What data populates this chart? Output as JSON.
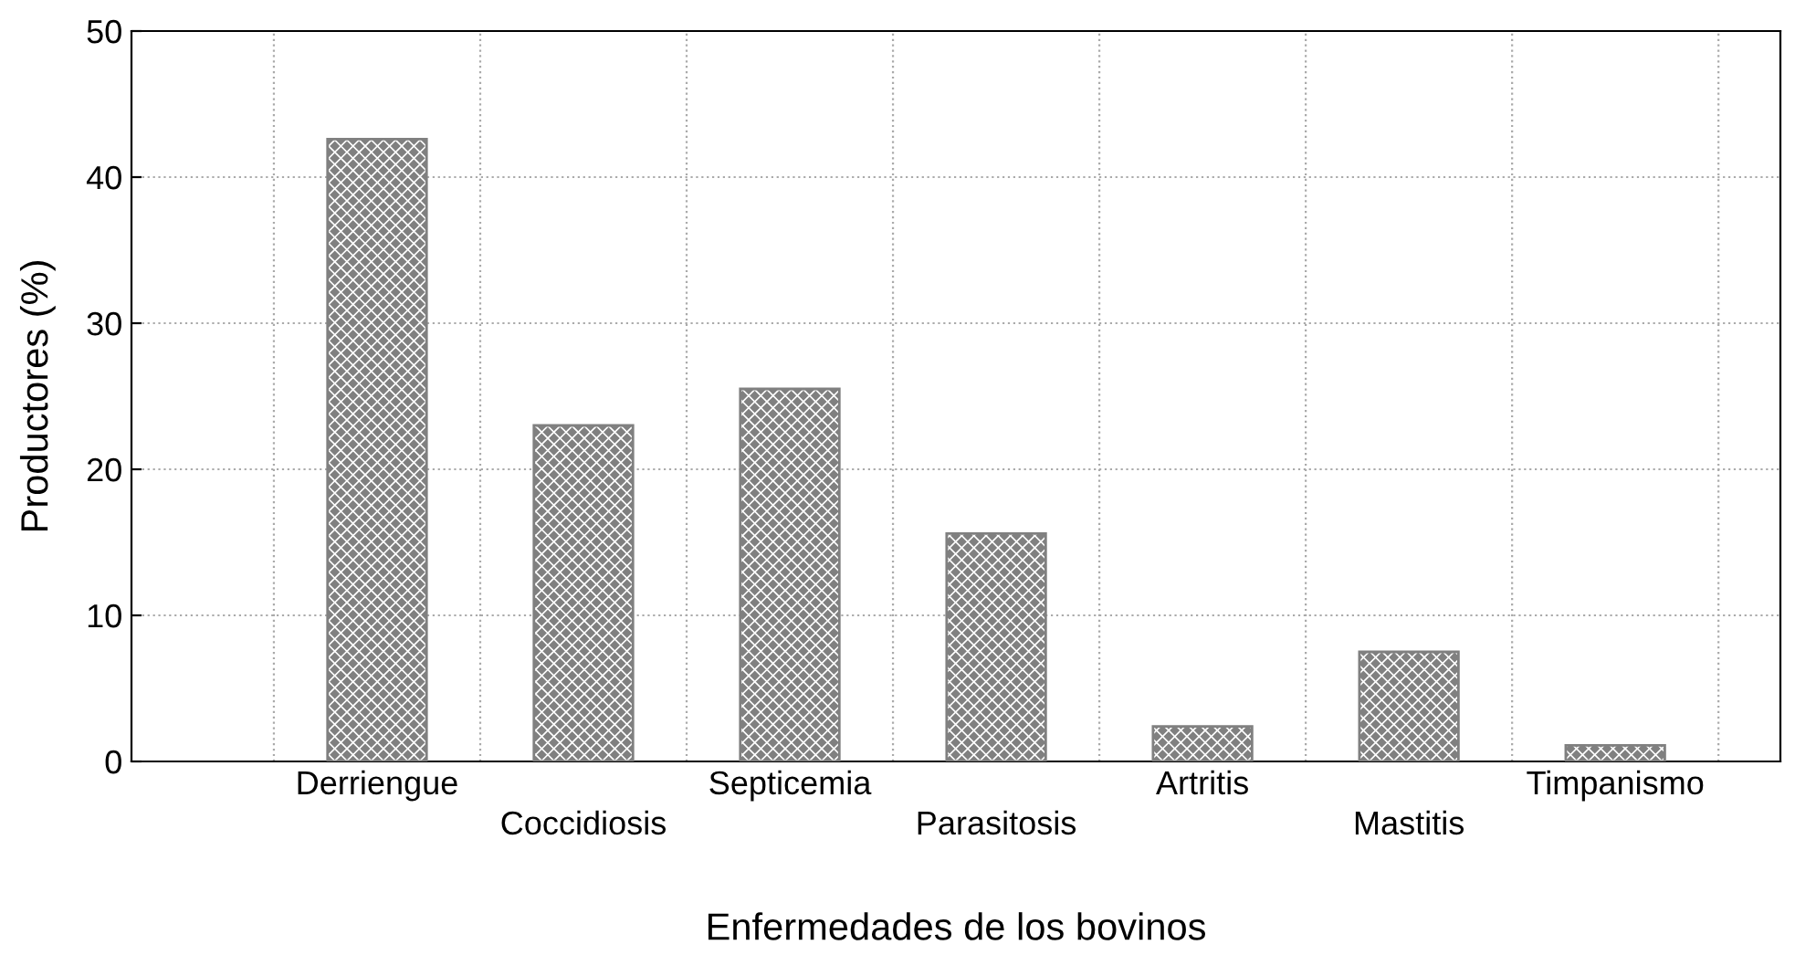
{
  "chart_data": {
    "type": "bar",
    "xlabel": "Enfermedades de los bovinos",
    "ylabel": "Productores (%)",
    "categories": [
      "Derriengue",
      "Coccidiosis",
      "Septicemia",
      "Parasitosis",
      "Artritis",
      "Mastitis",
      "Timpanismo"
    ],
    "values": [
      42.6,
      23.0,
      25.5,
      15.6,
      2.4,
      7.5,
      1.1
    ],
    "color": "#808080",
    "ylim": [
      0,
      50
    ],
    "yticks": [
      0,
      10,
      20,
      30,
      40,
      50
    ],
    "grid": true
  }
}
